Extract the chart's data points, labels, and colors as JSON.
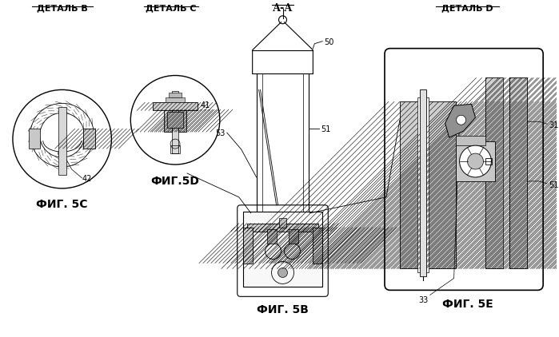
{
  "bg_color": "#ffffff",
  "line_color": "#000000",
  "title_aa": "А-А",
  "label_fig5b": "ФИГ. 5В",
  "label_fig5c": "ФИГ. 5С",
  "label_fig5d": "ФИГ.5D",
  "label_fig5e": "ФИГ. 5Е",
  "detail_b": "ДЕТАЛЬ В",
  "detail_c": "ДЕТАЛЬ С",
  "detail_d": "ДЕТАЛЬ D",
  "num_42": "42",
  "num_41": "41",
  "num_50": "50",
  "num_51": "51",
  "num_53": "53",
  "num_33": "33",
  "num_31": "31"
}
